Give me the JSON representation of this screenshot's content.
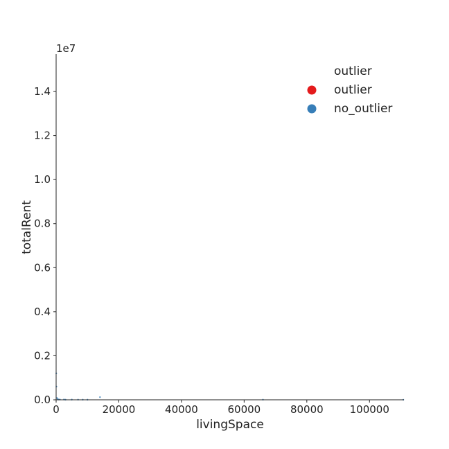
{
  "chart_data": {
    "type": "scatter",
    "xlabel": "livingSpace",
    "ylabel": "totalRent",
    "xlim": [
      0,
      111000
    ],
    "ylim": [
      0,
      15700000
    ],
    "y_offset_text": "1e7",
    "xticks": [
      {
        "value": 0,
        "label": "0"
      },
      {
        "value": 20000,
        "label": "20000"
      },
      {
        "value": 40000,
        "label": "40000"
      },
      {
        "value": 60000,
        "label": "60000"
      },
      {
        "value": 80000,
        "label": "80000"
      },
      {
        "value": 100000,
        "label": "100000"
      }
    ],
    "yticks": [
      {
        "value": 0,
        "label": "0.0"
      },
      {
        "value": 2000000,
        "label": "0.2"
      },
      {
        "value": 4000000,
        "label": "0.4"
      },
      {
        "value": 6000000,
        "label": "0.6"
      },
      {
        "value": 8000000,
        "label": "0.8"
      },
      {
        "value": 10000000,
        "label": "1.0"
      },
      {
        "value": 12000000,
        "label": "1.2"
      },
      {
        "value": 14000000,
        "label": "1.4"
      }
    ],
    "legend": {
      "title": "outlier",
      "placement": "top-right",
      "entries": [
        {
          "label": "outlier",
          "color": "#e41a1c"
        },
        {
          "label": "no_outlier",
          "color": "#377eb8"
        }
      ]
    },
    "series": [
      {
        "name": "no_outlier",
        "color": "#377eb8",
        "points": [
          {
            "x": 50,
            "y": 1200000
          },
          {
            "x": 100,
            "y": 600000
          },
          {
            "x": 300,
            "y": 80000
          },
          {
            "x": 500,
            "y": 30000
          },
          {
            "x": 800,
            "y": 15000
          },
          {
            "x": 1200,
            "y": 10000
          },
          {
            "x": 2500,
            "y": 12000
          },
          {
            "x": 3000,
            "y": 5000
          },
          {
            "x": 5000,
            "y": 8000
          },
          {
            "x": 7000,
            "y": 6000
          },
          {
            "x": 8500,
            "y": 5000
          },
          {
            "x": 10000,
            "y": 4000
          },
          {
            "x": 14000,
            "y": 120000
          },
          {
            "x": 66000,
            "y": 5000
          },
          {
            "x": 110800,
            "y": 3000
          }
        ]
      },
      {
        "name": "outlier",
        "color": "#e41a1c",
        "points": []
      }
    ]
  }
}
